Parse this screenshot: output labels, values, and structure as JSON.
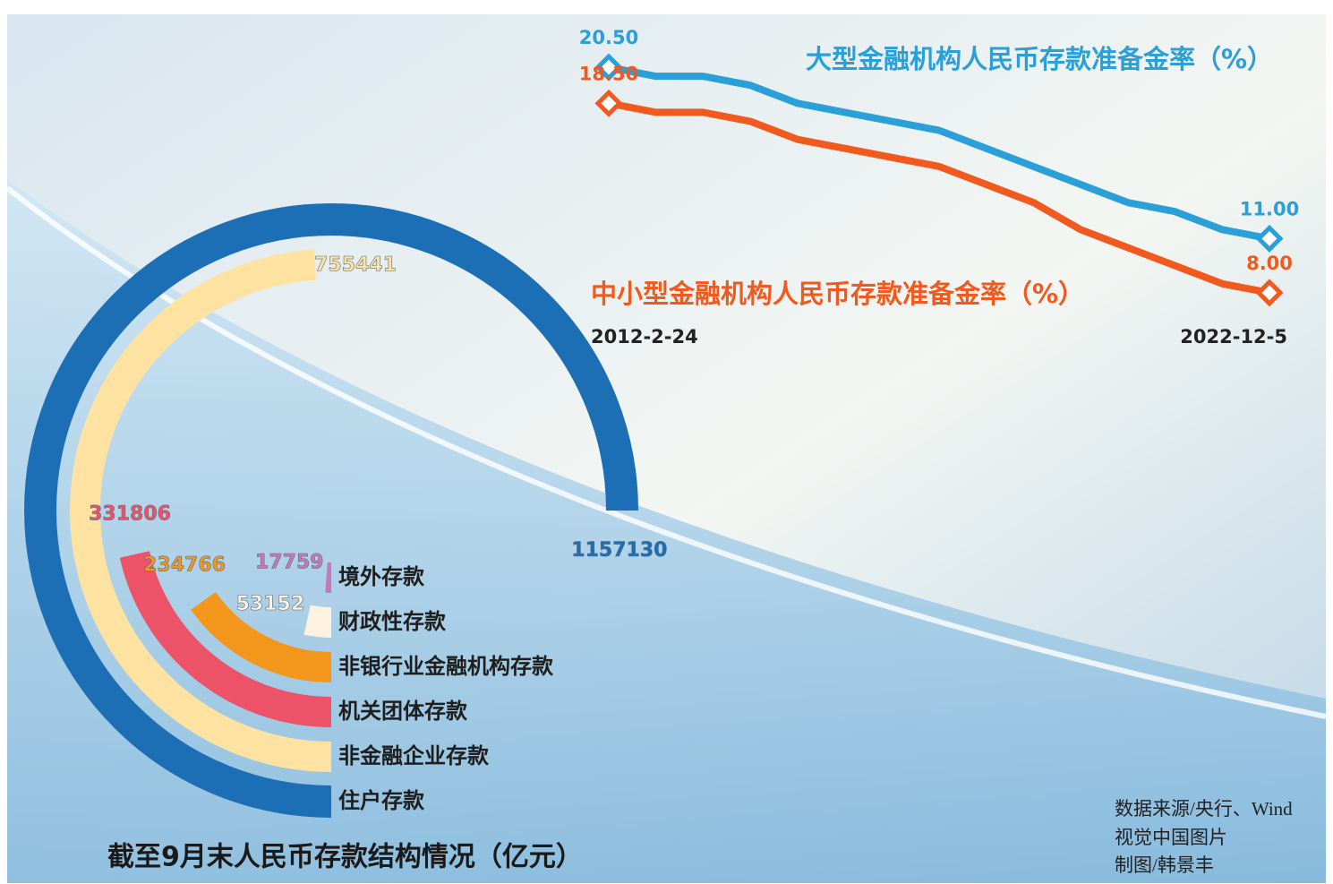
{
  "chart_data": [
    {
      "type": "line",
      "categories": [
        "2012-2-24",
        null,
        null,
        null,
        null,
        null,
        null,
        null,
        null,
        null,
        null,
        null,
        null,
        null,
        "2022-12-5"
      ],
      "series": [
        {
          "name": "大型金融机构人民币存款准备金率（%）",
          "color": "#2a9fd8",
          "values": [
            20.5,
            20,
            20,
            19.5,
            18.5,
            18,
            17.5,
            17,
            16,
            15,
            14,
            13,
            12.5,
            11.5,
            11
          ],
          "value_labels": [
            "20.50",
            null,
            null,
            null,
            null,
            null,
            null,
            null,
            null,
            null,
            null,
            null,
            null,
            null,
            "11.00"
          ]
        },
        {
          "name": "中小型金融机构人民币存款准备金率（%）",
          "color": "#f05a1e",
          "values": [
            18.5,
            18,
            18,
            17.5,
            16.5,
            16,
            15.5,
            15,
            14,
            13,
            11.5,
            10.5,
            9.5,
            8.5,
            8
          ],
          "value_labels": [
            "18.50",
            null,
            null,
            null,
            null,
            null,
            null,
            null,
            null,
            null,
            null,
            null,
            null,
            null,
            "8.00"
          ]
        }
      ],
      "ylim": [
        7,
        21
      ]
    },
    {
      "type": "radial_bar",
      "title": "截至9月末人民币存款结构情况（亿元）",
      "categories": [
        "住户存款",
        "非金融企业存款",
        "机关团体存款",
        "非银行业金融机构存款",
        "财政性存款",
        "境外存款"
      ],
      "values": [
        1157130,
        755441,
        331806,
        234766,
        53152,
        17759
      ],
      "colors": [
        "#1d6fb5",
        "#fde2a2",
        "#ec5369",
        "#f3961c",
        "#fdf1df",
        "#c47ab7"
      ]
    }
  ],
  "credits": [
    "数据来源/央行、Wind",
    "视觉中国图片",
    "制图/韩景丰"
  ]
}
